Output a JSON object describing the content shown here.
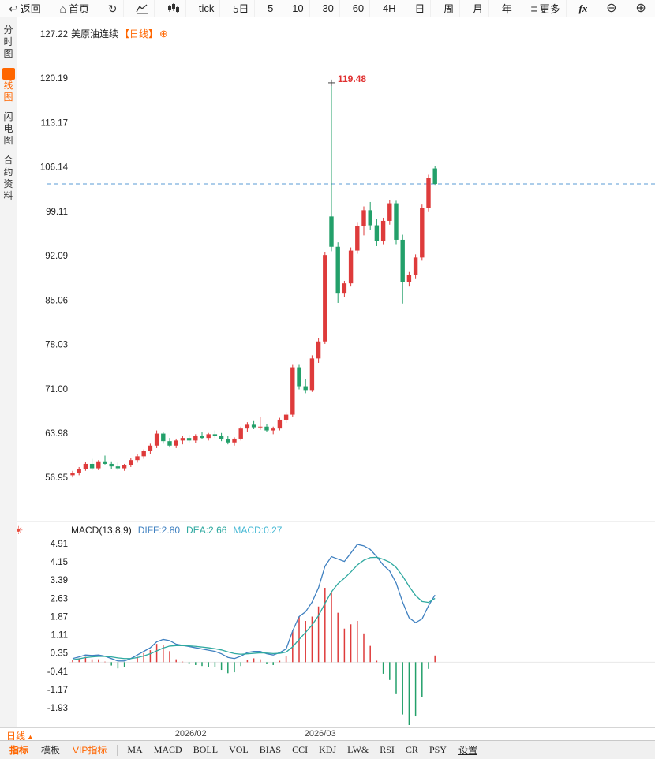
{
  "topbar": {
    "items": [
      {
        "id": "back",
        "icon": "back-arrow",
        "label": "返回"
      },
      {
        "id": "home",
        "icon": "home",
        "label": "首页"
      },
      {
        "id": "refresh",
        "icon": "refresh",
        "label": ""
      },
      {
        "id": "area-chart",
        "icon": "area-chart",
        "label": ""
      },
      {
        "id": "candle-chart",
        "icon": "candle-chart",
        "label": ""
      },
      {
        "id": "tick",
        "label": "tick"
      },
      {
        "id": "5d",
        "label": "5日"
      },
      {
        "id": "5min",
        "label": "5"
      },
      {
        "id": "10min",
        "label": "10"
      },
      {
        "id": "30min",
        "label": "30"
      },
      {
        "id": "60min",
        "label": "60"
      },
      {
        "id": "4h",
        "label": "4H"
      },
      {
        "id": "day",
        "label": "日"
      },
      {
        "id": "week",
        "label": "周"
      },
      {
        "id": "month",
        "label": "月"
      },
      {
        "id": "year",
        "label": "年"
      },
      {
        "id": "more",
        "icon": "menu",
        "label": "更多"
      },
      {
        "id": "fx",
        "label": "fx"
      },
      {
        "id": "zoom-out",
        "icon": "zoom-out",
        "label": ""
      },
      {
        "id": "zoom-in",
        "icon": "zoom-in",
        "label": ""
      }
    ]
  },
  "sidebar": {
    "items": [
      {
        "id": "time-chart",
        "label": "分时图",
        "active": false
      },
      {
        "id": "kline-chart",
        "label": "K线图",
        "active": true
      },
      {
        "id": "lightning-chart",
        "label": "闪电图",
        "active": false
      },
      {
        "id": "contract-info",
        "label": "合约资料",
        "active": false
      }
    ]
  },
  "chart_header": {
    "instrument": "美原油连续",
    "period": "【日线】",
    "add_icon": "⊕"
  },
  "macd_header": {
    "name": "MACD(13,8,9)",
    "diff": "DIFF:2.80",
    "dea": "DEA:2.66",
    "macd": "MACD:0.27",
    "settings_icon": "☀"
  },
  "xaxis": {
    "period_label": "日线",
    "period_arrow": "▲"
  },
  "bottom_tabs": {
    "left": [
      {
        "id": "indicators",
        "label": "指标",
        "style": "active"
      },
      {
        "id": "templates",
        "label": "模板",
        "style": "normal"
      },
      {
        "id": "vip-indicators",
        "label": "VIP指标",
        "style": "vip"
      }
    ],
    "indicators": [
      "MA",
      "MACD",
      "BOLL",
      "VOL",
      "BIAS",
      "CCI",
      "KDJ",
      "LW&",
      "RSI",
      "CR",
      "PSY"
    ],
    "settings_label": "设置"
  },
  "chart_data": {
    "type": "candlestick+macd",
    "colors": {
      "up": "#de3b3b",
      "down": "#23a06a",
      "diff": "#3f80c0",
      "dea": "#2fa9a0",
      "dashed": "#5a9bd5",
      "annotation": "#e03131"
    },
    "price_panel": {
      "title": "美原油连续【日线】",
      "y_ticks": [
        "127.22",
        "120.19",
        "113.17",
        "106.14",
        "99.11",
        "92.09",
        "85.06",
        "78.03",
        "71.00",
        "63.98",
        "56.95"
      ],
      "x_ticks": [
        {
          "label": "2026/02",
          "candle_index": 19
        },
        {
          "label": "2026/03",
          "candle_index": 39
        }
      ],
      "dashed_line_price": 103.47,
      "annotation": {
        "text": "119.48",
        "candle_index": 40
      },
      "candles": [
        [
          57.3,
          58.0,
          56.95,
          57.7
        ],
        [
          57.7,
          58.6,
          57.3,
          58.3
        ],
        [
          58.3,
          59.4,
          58.0,
          59.1
        ],
        [
          59.1,
          59.9,
          58.1,
          58.4
        ],
        [
          58.4,
          59.7,
          58.1,
          59.5
        ],
        [
          59.5,
          60.4,
          59.0,
          59.1
        ],
        [
          59.1,
          59.5,
          58.3,
          58.7
        ],
        [
          58.7,
          59.3,
          58.1,
          58.4
        ],
        [
          58.4,
          59.1,
          58.0,
          58.9
        ],
        [
          58.9,
          60.0,
          58.6,
          59.7
        ],
        [
          59.7,
          60.6,
          59.3,
          60.3
        ],
        [
          60.3,
          61.4,
          59.9,
          61.1
        ],
        [
          61.1,
          62.3,
          60.7,
          62.0
        ],
        [
          62.0,
          64.4,
          61.6,
          63.9
        ],
        [
          63.9,
          64.2,
          62.3,
          62.7
        ],
        [
          62.7,
          63.2,
          61.7,
          62.0
        ],
        [
          62.0,
          63.1,
          61.6,
          62.8
        ],
        [
          62.8,
          63.5,
          62.2,
          63.2
        ],
        [
          63.2,
          63.7,
          62.5,
          62.8
        ],
        [
          62.8,
          63.8,
          62.4,
          63.5
        ],
        [
          63.5,
          64.2,
          63.0,
          63.2
        ],
        [
          63.2,
          64.0,
          62.8,
          63.8
        ],
        [
          63.8,
          64.4,
          63.2,
          63.5
        ],
        [
          63.5,
          64.0,
          62.7,
          63.0
        ],
        [
          63.0,
          63.5,
          62.2,
          62.5
        ],
        [
          62.5,
          63.3,
          62.0,
          63.1
        ],
        [
          63.1,
          65.0,
          62.8,
          64.7
        ],
        [
          64.7,
          65.7,
          64.2,
          65.3
        ],
        [
          65.3,
          66.0,
          64.6,
          64.9
        ],
        [
          64.9,
          66.5,
          64.5,
          65.0
        ],
        [
          65.0,
          65.4,
          64.1,
          64.4
        ],
        [
          64.4,
          65.0,
          63.8,
          64.7
        ],
        [
          64.7,
          66.4,
          64.4,
          66.1
        ],
        [
          66.1,
          67.3,
          65.6,
          66.9
        ],
        [
          66.9,
          74.9,
          66.6,
          74.4
        ],
        [
          74.4,
          74.9,
          70.9,
          71.4
        ],
        [
          71.4,
          72.5,
          70.3,
          70.8
        ],
        [
          70.8,
          76.3,
          70.5,
          75.8
        ],
        [
          75.8,
          79.0,
          75.1,
          78.5
        ],
        [
          78.5,
          92.7,
          78.1,
          92.2
        ],
        [
          98.3,
          119.48,
          92.8,
          93.5
        ],
        [
          93.5,
          94.2,
          84.6,
          86.2
        ],
        [
          86.2,
          88.1,
          85.5,
          87.7
        ],
        [
          87.7,
          93.4,
          87.2,
          92.9
        ],
        [
          92.9,
          97.3,
          92.4,
          96.8
        ],
        [
          96.8,
          99.9,
          95.3,
          99.3
        ],
        [
          99.3,
          100.6,
          96.1,
          96.9
        ],
        [
          96.9,
          97.9,
          93.6,
          94.4
        ],
        [
          94.4,
          98.1,
          93.9,
          97.6
        ],
        [
          97.6,
          100.9,
          97.0,
          100.4
        ],
        [
          100.4,
          100.8,
          93.9,
          94.6
        ],
        [
          94.6,
          95.4,
          84.5,
          87.9
        ],
        [
          87.9,
          89.5,
          87.2,
          89.0
        ],
        [
          89.0,
          92.3,
          88.5,
          91.8
        ],
        [
          91.8,
          100.2,
          91.3,
          99.7
        ],
        [
          99.7,
          104.9,
          99.0,
          104.4
        ],
        [
          105.9,
          106.3,
          103.2,
          103.47
        ]
      ]
    },
    "macd_panel": {
      "name": "MACD(13,8,9)",
      "y_ticks": [
        "4.91",
        "4.15",
        "3.39",
        "2.63",
        "1.87",
        "1.11",
        "0.35",
        "-0.41",
        "-1.17",
        "-1.93"
      ],
      "diff": [
        0.15,
        0.22,
        0.3,
        0.28,
        0.3,
        0.25,
        0.15,
        0.05,
        0.05,
        0.15,
        0.3,
        0.45,
        0.6,
        0.85,
        0.95,
        0.9,
        0.75,
        0.7,
        0.65,
        0.6,
        0.55,
        0.5,
        0.45,
        0.35,
        0.2,
        0.15,
        0.25,
        0.4,
        0.45,
        0.45,
        0.35,
        0.3,
        0.4,
        0.55,
        1.3,
        1.9,
        2.1,
        2.5,
        3.1,
        4.0,
        4.4,
        4.3,
        4.2,
        4.55,
        4.91,
        4.85,
        4.7,
        4.4,
        4.05,
        3.8,
        3.3,
        2.5,
        1.85,
        1.65,
        1.8,
        2.35,
        2.8
      ],
      "dea": [
        0.1,
        0.14,
        0.19,
        0.22,
        0.24,
        0.24,
        0.22,
        0.18,
        0.15,
        0.15,
        0.19,
        0.26,
        0.35,
        0.47,
        0.59,
        0.67,
        0.69,
        0.69,
        0.68,
        0.66,
        0.63,
        0.6,
        0.56,
        0.51,
        0.43,
        0.36,
        0.33,
        0.35,
        0.37,
        0.39,
        0.38,
        0.36,
        0.37,
        0.42,
        0.64,
        0.95,
        1.24,
        1.55,
        1.94,
        2.45,
        2.93,
        3.27,
        3.5,
        3.76,
        4.05,
        4.25,
        4.36,
        4.37,
        4.29,
        4.17,
        3.95,
        3.59,
        3.16,
        2.78,
        2.53,
        2.49,
        2.66
      ]
    }
  }
}
